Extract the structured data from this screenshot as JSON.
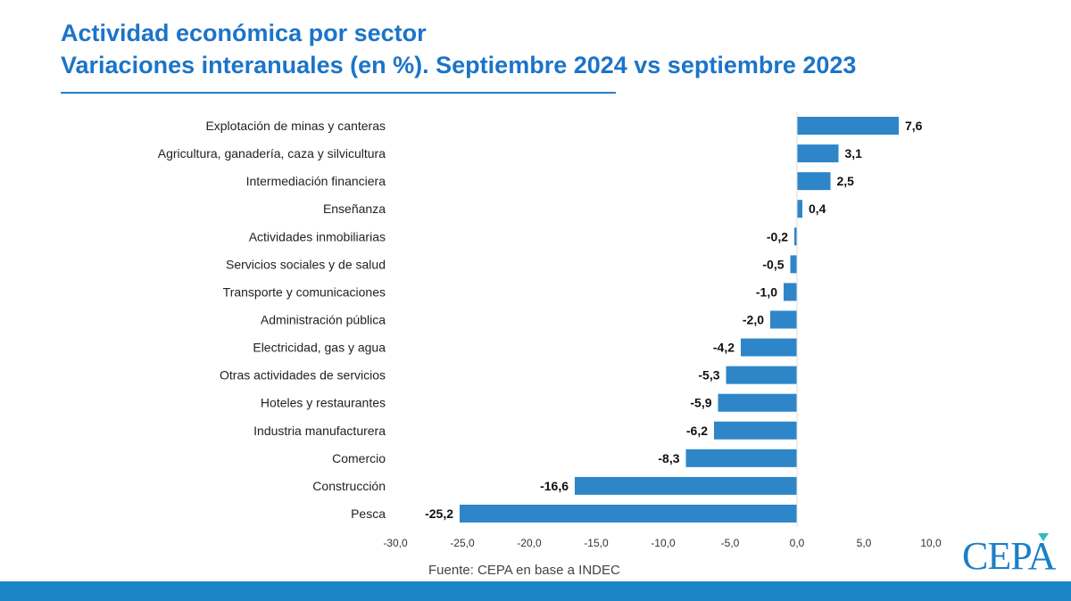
{
  "header": {
    "title_line1": "Actividad económica por sector",
    "title_line2": "Variaciones interanuales (en %). Septiembre 2024 vs septiembre 2023"
  },
  "chart_data": {
    "type": "bar",
    "orientation": "horizontal",
    "categories": [
      "Explotación de minas y canteras",
      "Agricultura, ganadería, caza y silvicultura",
      "Intermediación financiera",
      "Enseñanza",
      "Actividades inmobiliarias",
      "Servicios sociales y de salud",
      "Transporte y comunicaciones",
      "Administración pública",
      "Electricidad, gas y agua",
      "Otras actividades de servicios",
      "Hoteles y restaurantes",
      "Industria manufacturera",
      "Comercio",
      "Construcción",
      "Pesca"
    ],
    "values": [
      7.6,
      3.1,
      2.5,
      0.4,
      -0.2,
      -0.5,
      -1.0,
      -2.0,
      -4.2,
      -5.3,
      -5.9,
      -6.2,
      -8.3,
      -16.6,
      -25.2
    ],
    "data_labels": [
      "7,6",
      "3,1",
      "2,5",
      "0,4",
      "-0,2",
      "-0,5",
      "-1,0",
      "-2,0",
      "-4,2",
      "-5,3",
      "-5,9",
      "-6,2",
      "-8,3",
      "-16,6",
      "-25,2"
    ],
    "xlim": [
      -30,
      10
    ],
    "x_ticks": [
      -30,
      -25,
      -20,
      -15,
      -10,
      -5,
      0,
      5,
      10
    ],
    "x_tick_labels": [
      "-30,0",
      "-25,0",
      "-20,0",
      "-15,0",
      "-10,0",
      "-5,0",
      "0,0",
      "5,0",
      "10,0"
    ],
    "grid": false,
    "bar_color": "#2e86c9"
  },
  "footer": {
    "source": "Fuente: CEPA en base a INDEC",
    "logo_text": "CEPA",
    "band_color": "#1a86c8"
  }
}
